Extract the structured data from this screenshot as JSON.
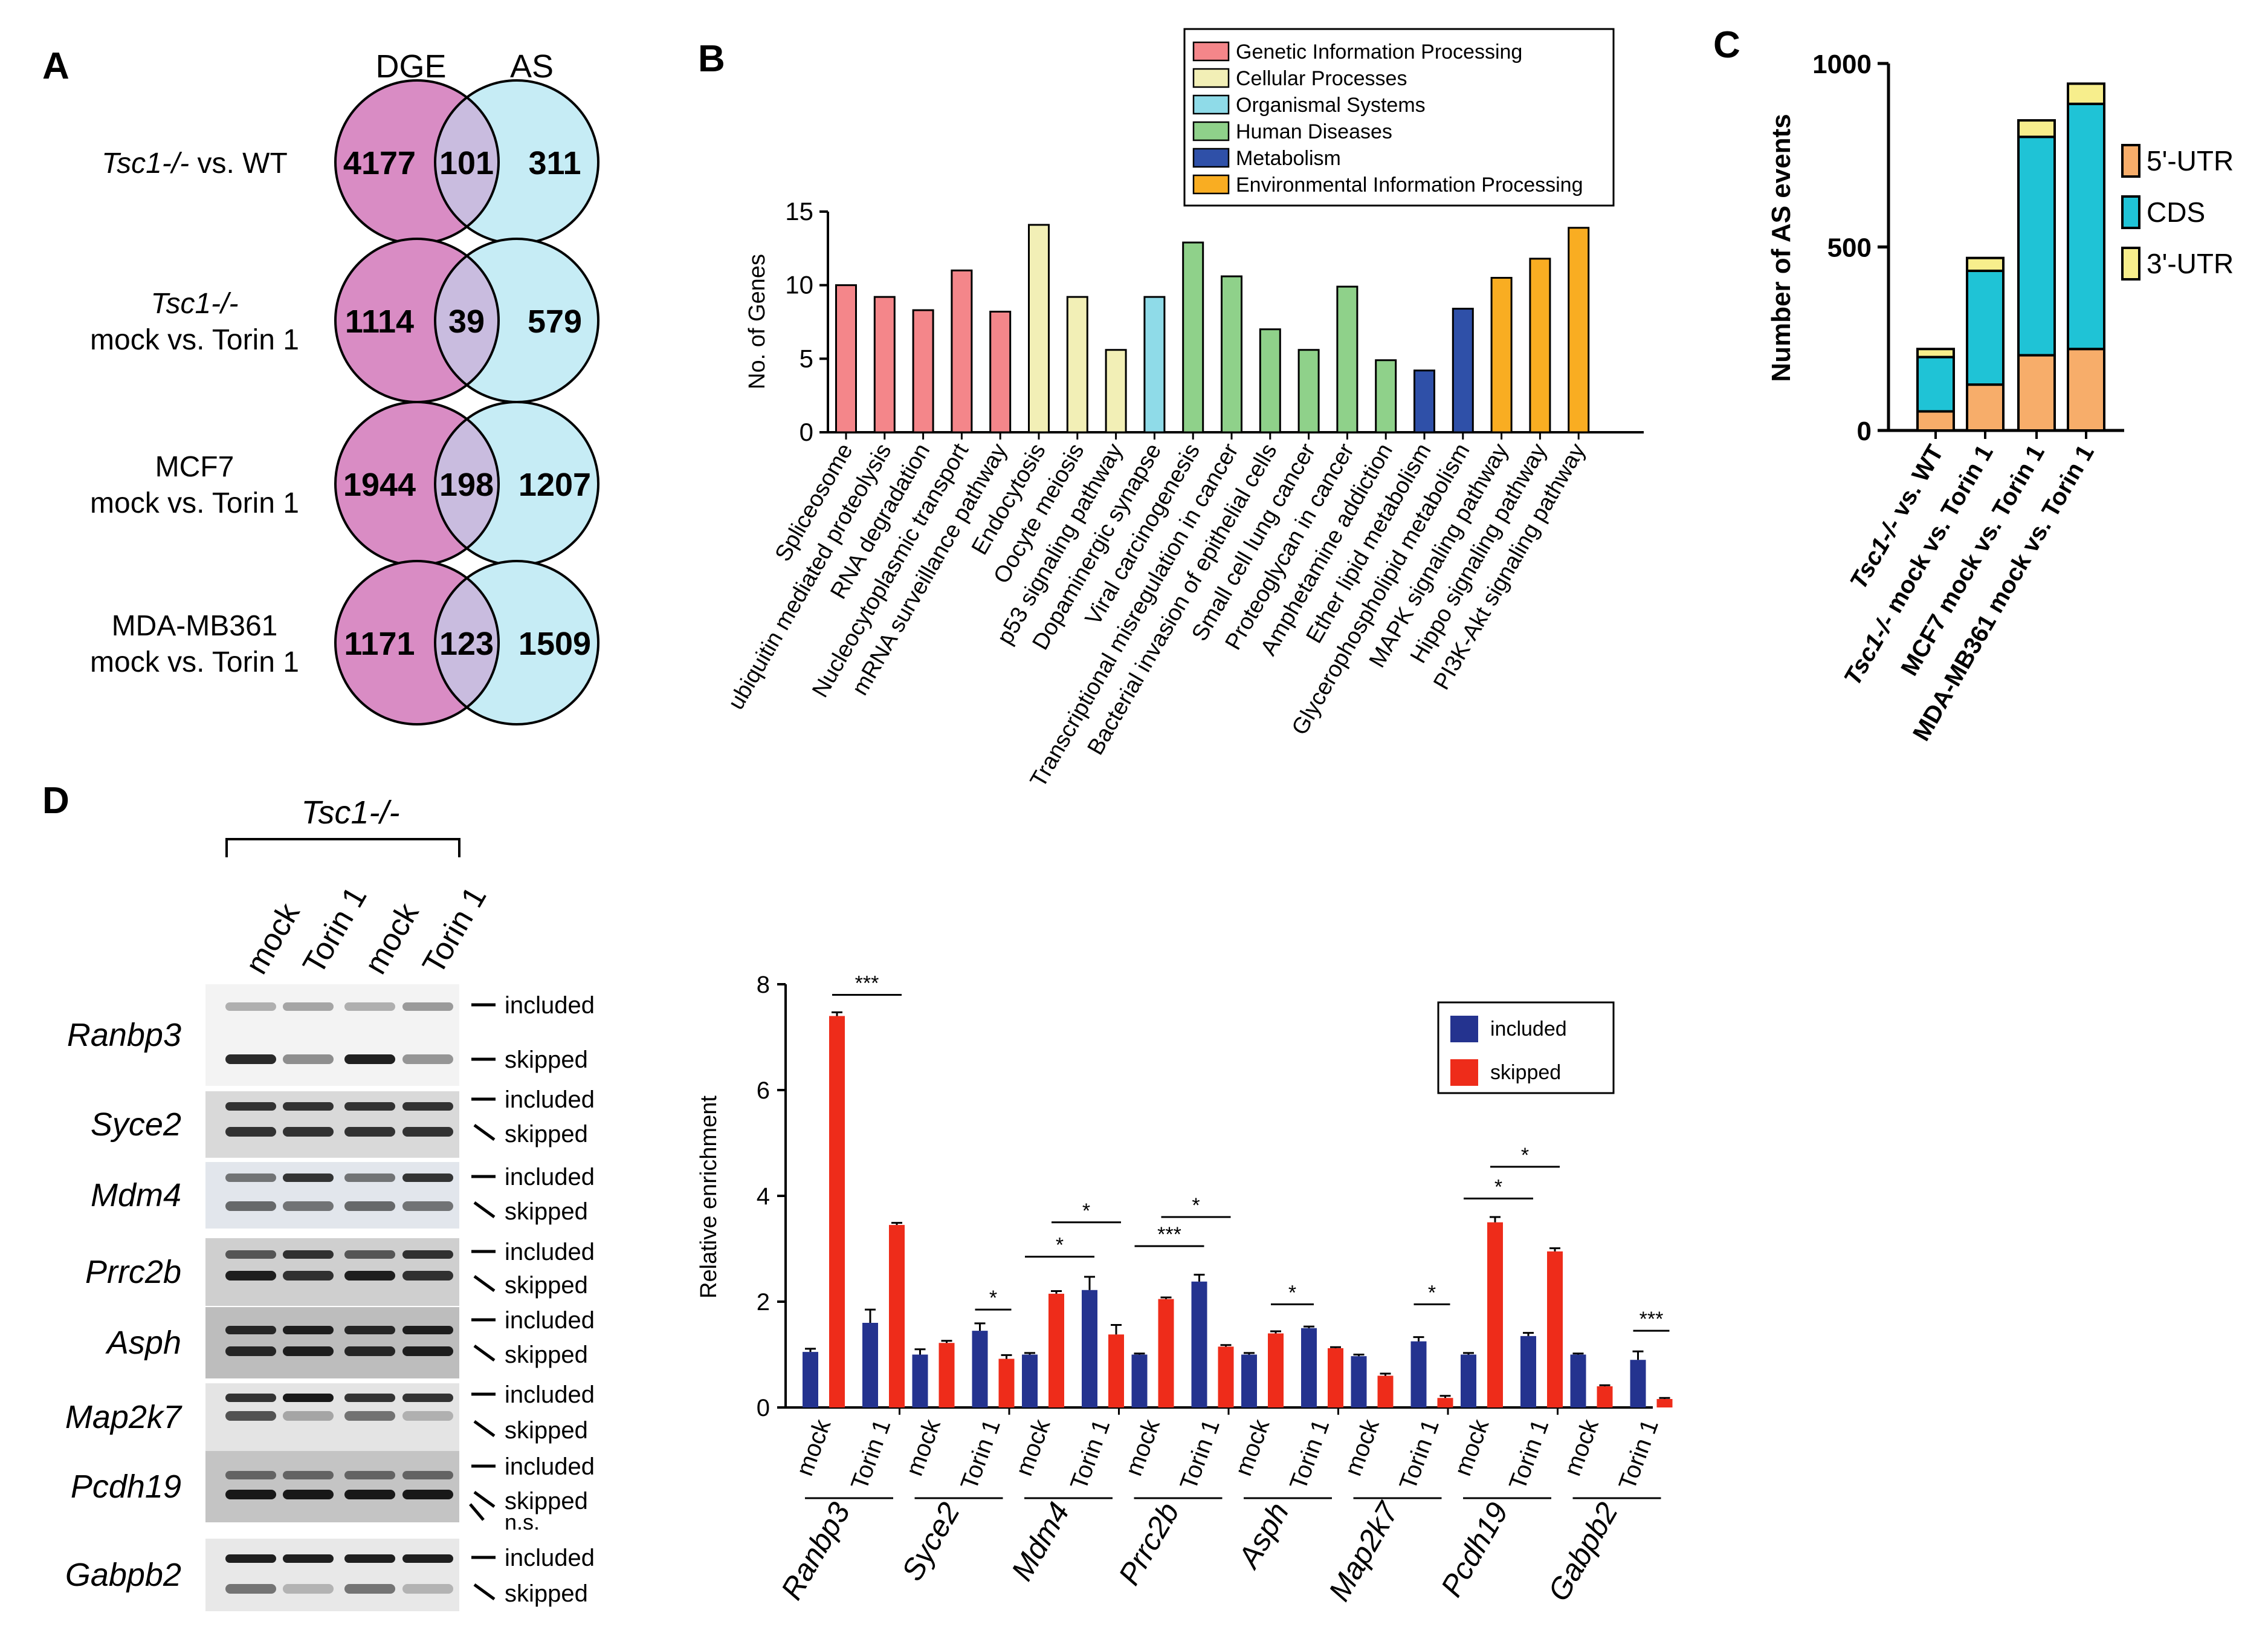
{
  "panels": {
    "a": "A",
    "b": "B",
    "c": "C",
    "d": "D"
  },
  "colors": {
    "dge": "#d98cc4",
    "as": "#c6ecf5",
    "overlap": "#c9bcdf",
    "genetic": "#f4868a",
    "cellular": "#f2efb6",
    "organismal": "#8fdbe8",
    "disease": "#8fd18a",
    "metabolism": "#2f50a8",
    "environmental": "#f9ad22",
    "utr5": "#f7ad6a",
    "cds": "#1fc3d6",
    "utr3": "#f7ee8c",
    "included": "#24338f",
    "skipped": "#ee2c1a"
  },
  "venn": {
    "dge_header": "DGE",
    "as_header": "AS",
    "rows": [
      {
        "italic": "Tsc1-/-",
        "label": " vs. WT",
        "line2": "",
        "dge": "4177",
        "overlap": "101",
        "as": "311"
      },
      {
        "italic": "Tsc1-/-",
        "label": "",
        "line2": "mock vs. Torin 1",
        "dge": "1114",
        "overlap": "39",
        "as": "579"
      },
      {
        "italic": "",
        "label": "MCF7",
        "line2": "mock vs. Torin 1",
        "dge": "1944",
        "overlap": "198",
        "as": "1207"
      },
      {
        "italic": "",
        "label": "MDA-MB361",
        "line2": "mock vs. Torin 1",
        "dge": "1171",
        "overlap": "123",
        "as": "1509"
      }
    ]
  },
  "chart_data": [
    {
      "type": "bar",
      "ylabel": "No. of Genes",
      "ylim": [
        0,
        15
      ],
      "yticks": [
        0,
        5,
        10,
        15
      ],
      "legend": [
        "Genetic Information Processing",
        "Cellular Processes",
        "Organismal Systems",
        "Human Diseases",
        "Metabolism",
        "Environmental Information Processing"
      ],
      "legend_keys": [
        "genetic",
        "cellular",
        "organismal",
        "disease",
        "metabolism",
        "environmental"
      ],
      "categories": [
        "Spliceosome",
        "ubiquitin mediated proteolysis",
        "RNA degradation",
        "Nucleocytoplasmic transport",
        "mRNA surveillance pathway",
        "Endocytosis",
        "Oocyte meiosis",
        "p53 signaling pathway",
        "Dopaminergic synapse",
        "Viral carcinogenesis",
        "Transcriptional misregulation in cancer",
        "Bacterial invasion of epithelial cells",
        "Small cell lung cancer",
        "Proteoglycan in cancer",
        "Amphetamine addiction",
        "Ether lipid metabolism",
        "Glycerophospholipid metabolism",
        "MAPK signaling pathway",
        "Hippo signaling pathway",
        "PI3K-Akt signaling pathway"
      ],
      "values": [
        10,
        9.2,
        8.3,
        11,
        8.2,
        14.1,
        9.2,
        5.6,
        9.2,
        12.9,
        10.6,
        7,
        5.6,
        9.9,
        4.9,
        4.2,
        8.4,
        10.5,
        11.8,
        13.9
      ],
      "groups": [
        "genetic",
        "genetic",
        "genetic",
        "genetic",
        "genetic",
        "cellular",
        "cellular",
        "cellular",
        "organismal",
        "disease",
        "disease",
        "disease",
        "disease",
        "disease",
        "disease",
        "metabolism",
        "metabolism",
        "environmental",
        "environmental",
        "environmental"
      ]
    },
    {
      "type": "bar",
      "stacked": true,
      "ylabel": "Number of AS events",
      "ylim": [
        0,
        1000
      ],
      "yticks": [
        0,
        500,
        1000
      ],
      "categories": [
        {
          "italic": "Tsc1-/-",
          "rest": " vs. WT"
        },
        {
          "italic": "Tsc1-/-",
          "rest": " mock vs. Torin 1"
        },
        {
          "italic": "",
          "rest": "MCF7 mock vs. Torin 1"
        },
        {
          "italic": "",
          "rest": "MDA-MB361 mock vs. Torin 1"
        }
      ],
      "series": [
        {
          "name": "5'-UTR",
          "key": "utr5",
          "values": [
            52,
            125,
            205,
            222
          ]
        },
        {
          "name": "CDS",
          "key": "cds",
          "values": [
            148,
            310,
            595,
            668
          ]
        },
        {
          "name": "3'-UTR",
          "key": "utr3",
          "values": [
            22,
            35,
            45,
            55
          ]
        }
      ]
    },
    {
      "type": "bar",
      "ylabel": "Relative enrichment",
      "ylim": [
        0,
        8
      ],
      "yticks": [
        0,
        2,
        4,
        6,
        8
      ],
      "conditions": [
        "mock",
        "Torin 1"
      ],
      "series": [
        {
          "name": "included",
          "key": "included"
        },
        {
          "name": "skipped",
          "key": "skipped"
        }
      ],
      "genes": [
        {
          "name": "Ranbp3",
          "included": [
            1.05,
            1.6
          ],
          "skipped": [
            7.4,
            3.45
          ],
          "included_err": [
            0.06,
            0.25
          ],
          "skipped_err": [
            0.07,
            0.04
          ],
          "sig": [
            {
              "label": "***",
              "level": 7.8,
              "from": 1,
              "to": 3
            }
          ]
        },
        {
          "name": "Syce2",
          "included": [
            1.0,
            1.45
          ],
          "skipped": [
            1.22,
            0.92
          ],
          "included_err": [
            0.1,
            0.14
          ],
          "skipped_err": [
            0.04,
            0.07
          ],
          "sig": [
            {
              "label": "*",
              "level": 1.85,
              "from": 2,
              "to": 3
            }
          ]
        },
        {
          "name": "Mdm4",
          "included": [
            1.0,
            2.22
          ],
          "skipped": [
            2.15,
            1.38
          ],
          "included_err": [
            0.03,
            0.25
          ],
          "skipped_err": [
            0.05,
            0.18
          ],
          "sig": [
            {
              "label": "*",
              "level": 2.85,
              "from": 0,
              "to": 2
            },
            {
              "label": "*",
              "level": 3.5,
              "from": 1,
              "to": 3
            }
          ]
        },
        {
          "name": "Prrc2b",
          "included": [
            1.0,
            2.38
          ],
          "skipped": [
            2.05,
            1.15
          ],
          "included_err": [
            0.02,
            0.13
          ],
          "skipped_err": [
            0.03,
            0.03
          ],
          "sig": [
            {
              "label": "***",
              "level": 3.05,
              "from": 0,
              "to": 2
            },
            {
              "label": "*",
              "level": 3.6,
              "from": 1,
              "to": 3
            }
          ]
        },
        {
          "name": "Asph",
          "included": [
            1.0,
            1.5
          ],
          "skipped": [
            1.4,
            1.12
          ],
          "included_err": [
            0.03,
            0.03
          ],
          "skipped_err": [
            0.04,
            0.02
          ],
          "sig": [
            {
              "label": "*",
              "level": 1.95,
              "from": 1,
              "to": 2
            }
          ]
        },
        {
          "name": "Map2k7",
          "included": [
            0.97,
            1.25
          ],
          "skipped": [
            0.6,
            0.18
          ],
          "included_err": [
            0.03,
            0.08
          ],
          "skipped_err": [
            0.04,
            0.04
          ],
          "sig": [
            {
              "label": "*",
              "level": 1.95,
              "from": 2,
              "to": 3
            }
          ]
        },
        {
          "name": "Pcdh19",
          "included": [
            1.0,
            1.35
          ],
          "skipped": [
            3.5,
            2.95
          ],
          "included_err": [
            0.03,
            0.06
          ],
          "skipped_err": [
            0.1,
            0.06
          ],
          "sig": [
            {
              "label": "*",
              "level": 3.95,
              "from": 0,
              "to": 2
            },
            {
              "label": "*",
              "level": 4.55,
              "from": 1,
              "to": 3
            }
          ]
        },
        {
          "name": "Gabpb2",
          "included": [
            1.0,
            0.9
          ],
          "skipped": [
            0.4,
            0.16
          ],
          "included_err": [
            0.02,
            0.16
          ],
          "skipped_err": [
            0.02,
            0.02
          ],
          "sig": [
            {
              "label": "***",
              "level": 1.45,
              "from": 2,
              "to": 3
            }
          ]
        }
      ]
    }
  ],
  "gel": {
    "title": "Tsc1-/-",
    "lanes": [
      "mock",
      "Torin 1",
      "mock",
      "Torin 1"
    ],
    "included_label": "included",
    "skipped_label": "skipped",
    "ns_label": "n.s.",
    "genes": [
      "Ranbp3",
      "Syce2",
      "Mdm4",
      "Prrc2b",
      "Asph",
      "Map2k7",
      "Pcdh19",
      "Gabpb2"
    ]
  }
}
